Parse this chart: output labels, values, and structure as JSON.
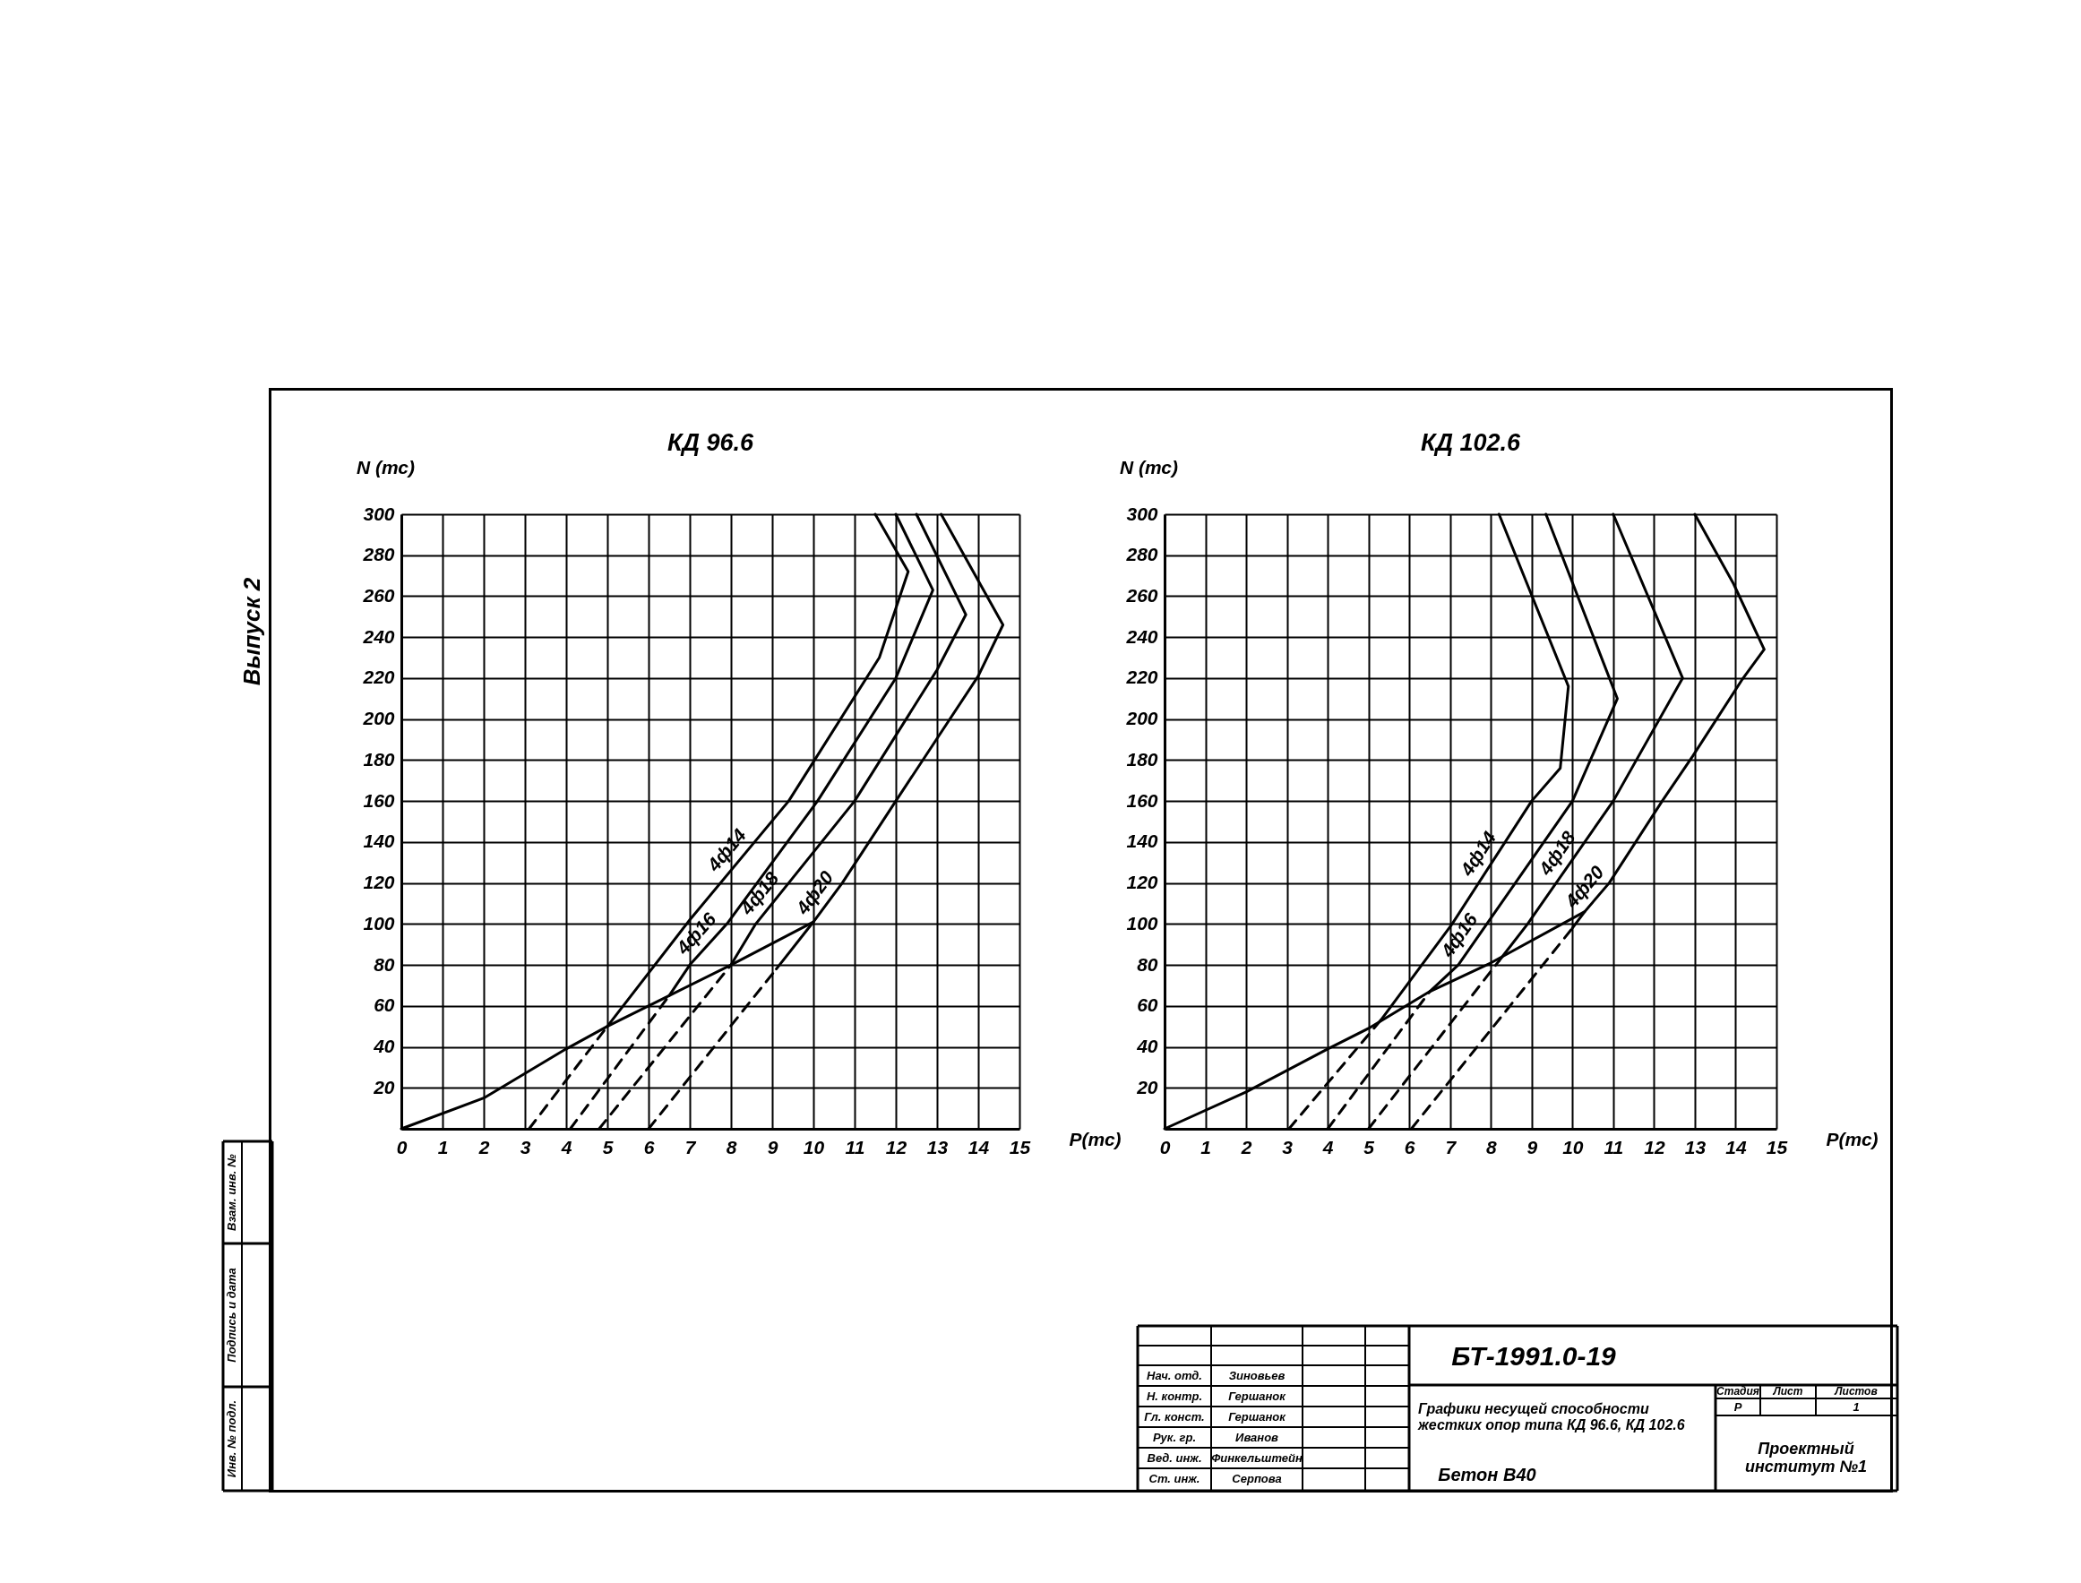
{
  "chart_data": [
    {
      "type": "line",
      "title": "КД 96.6",
      "xlabel": "P(тс)",
      "ylabel": "N (тс)",
      "xlim": [
        0,
        15
      ],
      "ylim": [
        0,
        300
      ],
      "xticks": [
        0,
        1,
        2,
        3,
        4,
        5,
        6,
        7,
        8,
        9,
        10,
        11,
        12,
        13,
        14,
        15
      ],
      "yticks": [
        20,
        40,
        60,
        80,
        100,
        120,
        140,
        160,
        180,
        200,
        220,
        240,
        260,
        280,
        300
      ],
      "grid": true,
      "series": [
        {
          "name": "4ф14",
          "color": "#000000",
          "x": [
            11.5,
            12.3,
            11.6,
            9.4,
            7.0,
            5.0
          ],
          "values": [
            300,
            272,
            230,
            160,
            102,
            50
          ]
        },
        {
          "name": "4ф16",
          "color": "#000000",
          "x": [
            12.0,
            12.9,
            12.0,
            10.1,
            7.9,
            7.0,
            6.5
          ],
          "values": [
            300,
            263,
            220,
            160,
            100,
            80,
            65
          ]
        },
        {
          "name": "4ф18",
          "color": "#000000",
          "x": [
            12.5,
            13.7,
            13.0,
            11.0,
            9.4,
            8.6,
            8.0
          ],
          "values": [
            300,
            251,
            224,
            160,
            120,
            100,
            80
          ]
        },
        {
          "name": "4ф20",
          "color": "#000000",
          "x": [
            13.1,
            14.6,
            14.0,
            12.0,
            10.7,
            10.0,
            9.1
          ],
          "values": [
            300,
            246,
            221,
            160,
            120,
            101,
            78
          ]
        },
        {
          "color": "#000000",
          "x": [
            0,
            2,
            4,
            5,
            6.5,
            8,
            10.0
          ],
          "values": [
            0,
            15,
            39,
            50,
            65,
            80,
            101
          ]
        },
        {
          "color": "#000000",
          "line_style": "dashed",
          "x": [
            3.1,
            5.0
          ],
          "values": [
            0,
            50
          ]
        },
        {
          "color": "#000000",
          "line_style": "dashed",
          "x": [
            4.1,
            6.5
          ],
          "values": [
            0,
            65
          ]
        },
        {
          "color": "#000000",
          "line_style": "dashed",
          "x": [
            4.8,
            8.0
          ],
          "values": [
            0,
            80
          ]
        },
        {
          "color": "#000000",
          "line_style": "dashed",
          "x": [
            6.0,
            9.1
          ],
          "values": [
            0,
            78
          ]
        }
      ]
    },
    {
      "type": "line",
      "title": "КД 102.6",
      "xlabel": "P(тс)",
      "ylabel": "N (тс)",
      "xlim": [
        0,
        15
      ],
      "ylim": [
        0,
        300
      ],
      "xticks": [
        0,
        1,
        2,
        3,
        4,
        5,
        6,
        7,
        8,
        9,
        10,
        11,
        12,
        13,
        14,
        15
      ],
      "yticks": [
        20,
        40,
        60,
        80,
        100,
        120,
        140,
        160,
        180,
        200,
        220,
        240,
        260,
        280,
        300
      ],
      "grid": true,
      "series": [
        {
          "name": "4ф14",
          "color": "#000000",
          "x": [
            8.2,
            9.9,
            9.7,
            9.0,
            7.05,
            5.3
          ],
          "values": [
            300,
            216,
            176,
            160,
            100,
            53
          ]
        },
        {
          "name": "4ф16",
          "color": "#000000",
          "x": [
            9.35,
            11.1,
            10.0,
            7.9,
            7.2,
            6.5
          ],
          "values": [
            300,
            210,
            160,
            100,
            80,
            67
          ]
        },
        {
          "name": "4ф18",
          "color": "#000000",
          "x": [
            11.0,
            12.7,
            11.0,
            8.9,
            8.2
          ],
          "values": [
            300,
            220,
            160,
            100,
            82
          ]
        },
        {
          "name": "4ф20",
          "color": "#000000",
          "x": [
            13.0,
            13.95,
            14.7,
            14.15,
            12.95,
            12.2,
            10.9,
            10.3,
            10.0
          ],
          "values": [
            300,
            266,
            234,
            219,
            182,
            160,
            120,
            106,
            98
          ]
        },
        {
          "color": "#000000",
          "x": [
            0,
            2,
            4,
            5,
            6.5,
            8,
            10.3
          ],
          "values": [
            0,
            18,
            39,
            49,
            67,
            81,
            106
          ]
        },
        {
          "color": "#000000",
          "line_style": "dashed",
          "x": [
            3.05,
            5.3
          ],
          "values": [
            0,
            53
          ]
        },
        {
          "color": "#000000",
          "line_style": "dashed",
          "x": [
            4.0,
            6.5
          ],
          "values": [
            0,
            67
          ]
        },
        {
          "color": "#000000",
          "line_style": "dashed",
          "x": [
            5.0,
            8.2
          ],
          "values": [
            0,
            82
          ]
        },
        {
          "color": "#000000",
          "line_style": "dashed",
          "x": [
            6.05,
            10.0
          ],
          "values": [
            0,
            98
          ]
        }
      ]
    },
    {
      "type": "other",
      "annotations": [
        "Выпуск 2",
        "Инв. № подл.",
        "Подпись и дата",
        "Взам. инв. №",
        "БТ-1991.0-19",
        "Графики несущей способности жестких опор типа КД 96.6, КД 102.6",
        "Бетон В40",
        "Стадия",
        "Лист",
        "Листов",
        "Р",
        "1",
        "Проектный институт №1",
        "Нач. отд.",
        "Зиновьев",
        "Н. контр.",
        "Гершанок",
        "Гл. конст.",
        "Гершанок",
        "Рук. гр.",
        "Иванов",
        "Вед. инж.",
        "Финкельштейн",
        "Ст. инж.",
        "Серпова"
      ]
    }
  ]
}
